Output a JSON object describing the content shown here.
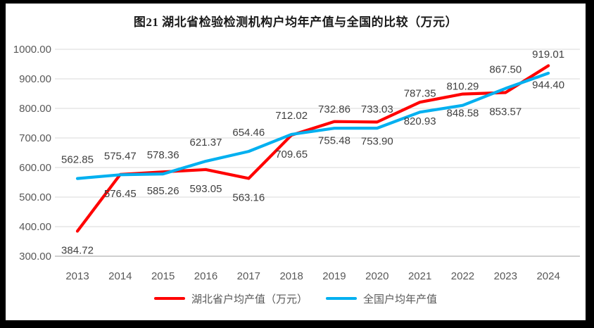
{
  "chart_data": {
    "type": "line",
    "title": "图21 湖北省检验检测机构户均年产值与全国的比较（万元）",
    "categories": [
      "2013",
      "2014",
      "2015",
      "2016",
      "2017",
      "2018",
      "2019",
      "2020",
      "2021",
      "2022",
      "2023",
      "2024"
    ],
    "series": [
      {
        "name": "湖北省户均产值（万元）",
        "color": "#FF0000",
        "data_label_position": "below",
        "values": [
          384.72,
          576.45,
          585.26,
          593.05,
          563.16,
          709.65,
          755.48,
          753.9,
          820.93,
          848.58,
          853.57,
          944.4
        ]
      },
      {
        "name": "全国户均年产值",
        "color": "#00B0F0",
        "data_label_position": "above",
        "values": [
          562.85,
          575.47,
          578.36,
          621.37,
          654.46,
          712.02,
          732.86,
          733.03,
          787.35,
          810.29,
          867.5,
          919.01
        ]
      }
    ],
    "ylim": [
      300,
      1000
    ],
    "ytick_step": 100,
    "ytick_decimals": 2,
    "grid": true,
    "data_labels": true,
    "legend_position": "bottom",
    "colors": {
      "grid": "#D9D9D9",
      "axis": "#BFBFBF",
      "tick_label": "#595959",
      "data_label": "#404040",
      "frame": "#000000",
      "canvas": "#FFFFFF"
    }
  }
}
